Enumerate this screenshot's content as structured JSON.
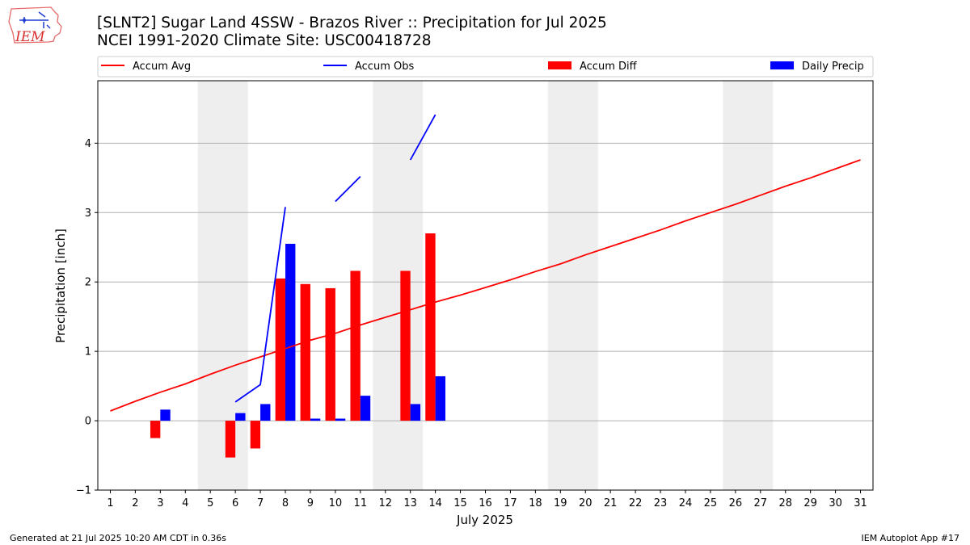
{
  "header": {
    "title_line1": "[SLNT2] Sugar Land 4SSW - Brazos River :: Precipitation for Jul 2025",
    "title_line2": "NCEI 1991-2020 Climate Site: USC00418728",
    "logo_text": "IEM"
  },
  "footer": {
    "generated": "Generated at 21 Jul 2025 10:20 AM CDT in 0.36s",
    "app": "IEM Autoplot App #17"
  },
  "colors": {
    "accum_avg": "#ff0000",
    "accum_obs": "#0000ff",
    "accum_diff": "#ff0000",
    "daily_precip": "#0000ff",
    "weekend_shade": "#eeeeee",
    "grid": "#b0b0b0"
  },
  "chart_data": {
    "type": "bar",
    "xlabel": "July 2025",
    "ylabel": "Precipitation [inch]",
    "x": [
      1,
      2,
      3,
      4,
      5,
      6,
      7,
      8,
      9,
      10,
      11,
      12,
      13,
      14,
      15,
      16,
      17,
      18,
      19,
      20,
      21,
      22,
      23,
      24,
      25,
      26,
      27,
      28,
      29,
      30,
      31
    ],
    "xlim": [
      0.5,
      31.5
    ],
    "ylim": [
      -1.0,
      4.9
    ],
    "yticks": [
      -1,
      0,
      1,
      2,
      3,
      4
    ],
    "grid": "horizontal",
    "legend_placement": "top",
    "shaded_days": [
      [
        5,
        6
      ],
      [
        12,
        13
      ],
      [
        19,
        20
      ],
      [
        26,
        27
      ]
    ],
    "series": [
      {
        "name": "Accum Avg",
        "kind": "line",
        "color": "#ff0000",
        "x": [
          1,
          2,
          3,
          4,
          5,
          6,
          7,
          8,
          9,
          10,
          11,
          12,
          13,
          14,
          15,
          16,
          17,
          18,
          19,
          20,
          21,
          22,
          23,
          24,
          25,
          26,
          27,
          28,
          29,
          30,
          31
        ],
        "values": [
          0.14,
          0.28,
          0.41,
          0.53,
          0.67,
          0.8,
          0.92,
          1.04,
          1.16,
          1.26,
          1.38,
          1.49,
          1.6,
          1.71,
          1.81,
          1.92,
          2.03,
          2.15,
          2.26,
          2.39,
          2.51,
          2.63,
          2.75,
          2.88,
          3.0,
          3.12,
          3.25,
          3.38,
          3.5,
          3.63,
          3.76
        ]
      },
      {
        "name": "Accum Obs",
        "kind": "line",
        "color": "#0000ff",
        "x": [
          6,
          7,
          8,
          9,
          10,
          11,
          12,
          13,
          14
        ],
        "values": [
          0.27,
          0.52,
          3.08,
          null,
          3.16,
          3.52,
          null,
          3.76,
          4.41
        ]
      },
      {
        "name": "Accum Diff",
        "kind": "bar",
        "color": "#ff0000",
        "x": [
          3,
          6,
          7,
          8,
          9,
          10,
          11,
          13,
          14
        ],
        "values": [
          -0.25,
          -0.53,
          -0.4,
          2.05,
          1.97,
          1.91,
          2.16,
          2.16,
          2.7
        ]
      },
      {
        "name": "Daily Precip",
        "kind": "bar",
        "color": "#0000ff",
        "x": [
          3,
          6,
          7,
          8,
          9,
          10,
          11,
          13,
          14
        ],
        "values": [
          0.16,
          0.11,
          0.24,
          2.55,
          0.03,
          0.03,
          0.36,
          0.24,
          0.64
        ]
      }
    ]
  }
}
